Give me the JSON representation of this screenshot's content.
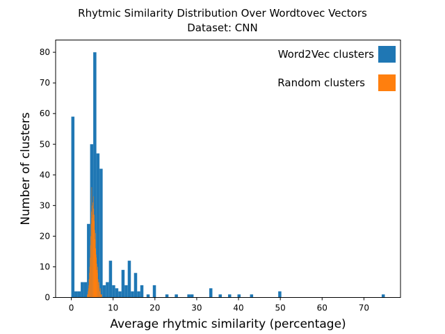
{
  "chart_data": {
    "type": "bar",
    "title_line1": "Rhytmic Similarity Distribution Over Wordtovec Vectors",
    "title_line2": "Dataset: CNN",
    "xlabel": "Average rhytmic similarity (percentage)",
    "ylabel": "Number of clusters",
    "xlim": [
      -3.75,
      78.75
    ],
    "ylim": [
      0,
      84
    ],
    "xticks": [
      0,
      10,
      20,
      30,
      40,
      50,
      60,
      70
    ],
    "yticks": [
      0,
      10,
      20,
      30,
      40,
      50,
      60,
      70,
      80
    ],
    "grid": false,
    "legend_position": "top-right",
    "series": [
      {
        "name": "Word2Vec clusters",
        "color": "#1f77b4",
        "bin_width": 0.75,
        "bin_edges_start": [
          0,
          0.75,
          1.5,
          2.25,
          3.0,
          3.75,
          4.5,
          5.25,
          6.0,
          6.75,
          7.5,
          8.25,
          9.0,
          9.75,
          10.5,
          11.25,
          12.0,
          12.75,
          13.5,
          14.25,
          15.0,
          15.75,
          16.5,
          18.0,
          19.5,
          22.5,
          24.75,
          27.75,
          28.5,
          33.0,
          35.25,
          37.5,
          39.75,
          42.75,
          49.5,
          74.25
        ],
        "counts": [
          59,
          2,
          2,
          5,
          5,
          24,
          50,
          80,
          47,
          42,
          4,
          5,
          12,
          4,
          3,
          2,
          9,
          4,
          12,
          2,
          8,
          2,
          4,
          1,
          4,
          1,
          1,
          1,
          1,
          3,
          1,
          1,
          1,
          1,
          2,
          1
        ]
      },
      {
        "name": "Random clusters",
        "color": "#ff7f0e",
        "bin_width": 0.08,
        "bin_edges_start": [
          3.8,
          3.88,
          3.96,
          4.04,
          4.12,
          4.2,
          4.28,
          4.36,
          4.44,
          4.52,
          4.6,
          4.68,
          4.76,
          4.84,
          4.92,
          5.0,
          5.08,
          5.16,
          5.24,
          5.32,
          5.4,
          5.48,
          5.56,
          5.64,
          5.72,
          5.8,
          5.88,
          5.96,
          6.04,
          6.12,
          6.2,
          6.28,
          6.36,
          6.44,
          6.52,
          6.6,
          6.68,
          6.76,
          6.84,
          6.92,
          7.0,
          7.08,
          7.16,
          7.24
        ],
        "counts": [
          1,
          1,
          2,
          3,
          4,
          6,
          8,
          10,
          13,
          17,
          20,
          24,
          28,
          36,
          30,
          26,
          31,
          27,
          33,
          29,
          25,
          27,
          22,
          19,
          21,
          16,
          13,
          14,
          11,
          9,
          8,
          10,
          6,
          5,
          4,
          5,
          3,
          2,
          2,
          3,
          1,
          1,
          1,
          1
        ]
      }
    ]
  }
}
